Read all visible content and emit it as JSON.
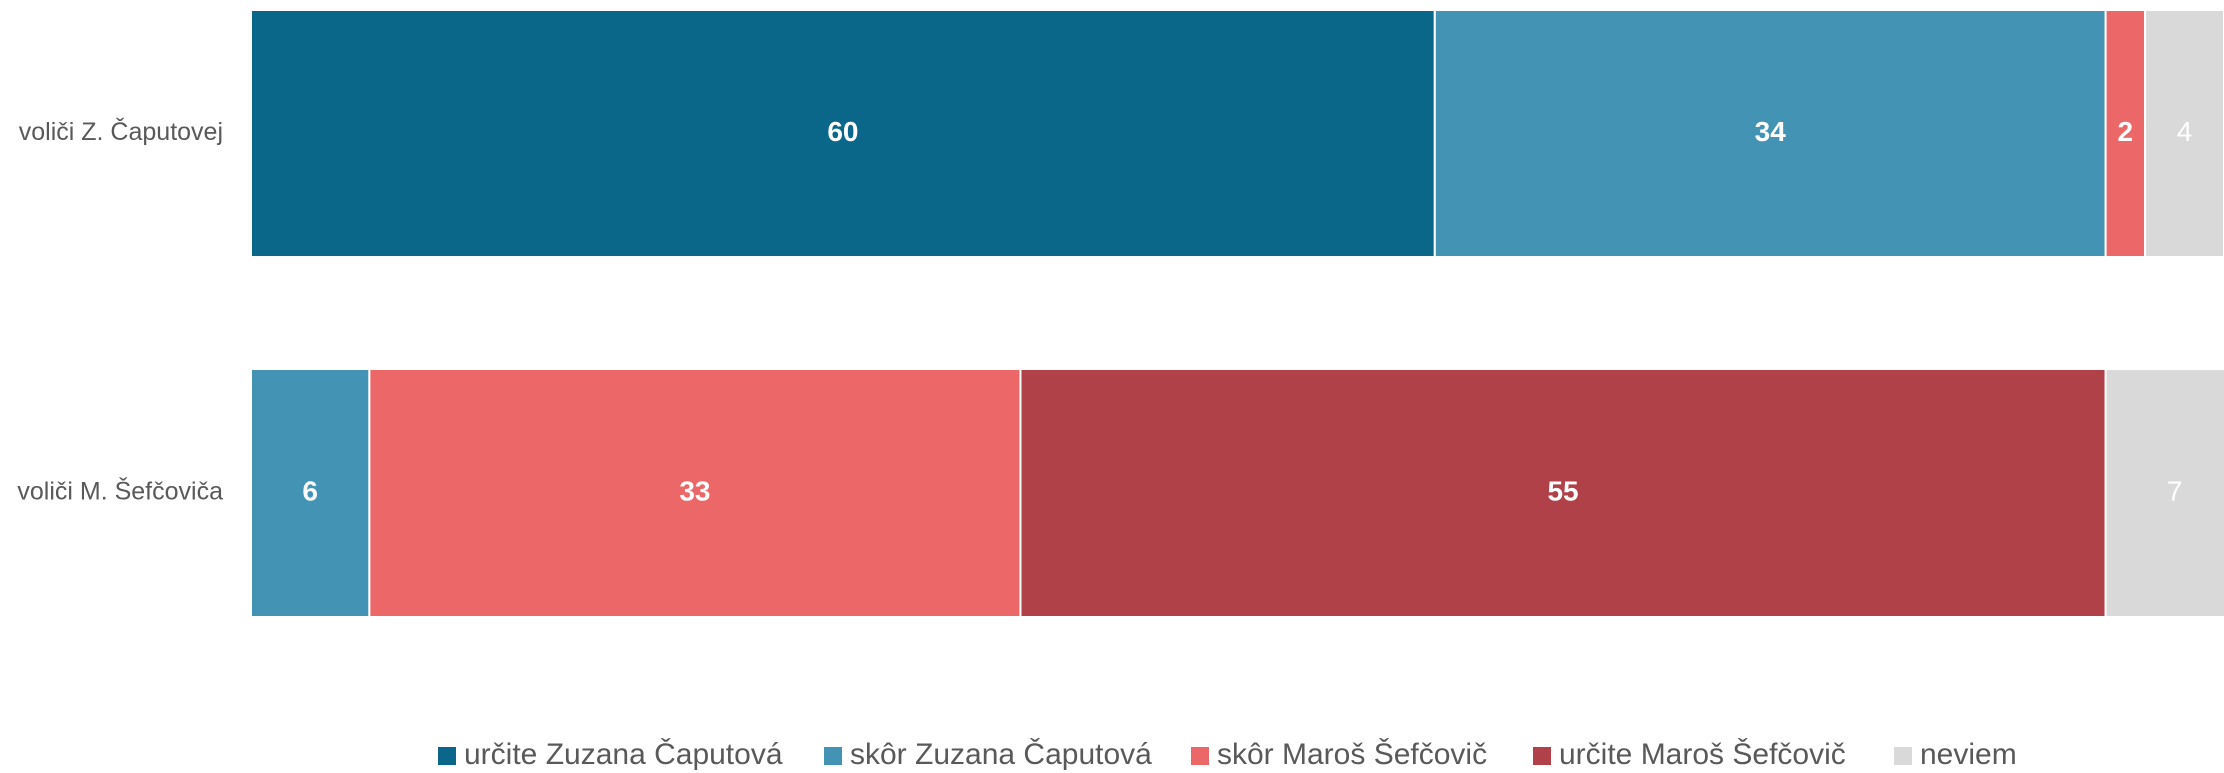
{
  "chart_data": {
    "type": "stacked-barh",
    "categories": [
      "voliči Z. Čaputovej",
      "voliči M. Šefčoviča"
    ],
    "series": [
      {
        "name": "určite Zuzana Čaputová",
        "color": "#0b6789",
        "values": [
          60,
          null
        ]
      },
      {
        "name": "skôr Zuzana Čaputová",
        "color": "#4393b4",
        "values": [
          34,
          6
        ]
      },
      {
        "name": "skôr Maroš Šefčovič",
        "color": "#eb6768",
        "values": [
          2,
          33
        ]
      },
      {
        "name": "určite Maroš Šefčovič",
        "color": "#b04149",
        "values": [
          null,
          55
        ]
      },
      {
        "name": "neviem",
        "color": "#d9d9d9",
        "values": [
          4,
          7
        ]
      }
    ],
    "xlim": [
      0,
      100
    ],
    "legend": "bottom"
  }
}
